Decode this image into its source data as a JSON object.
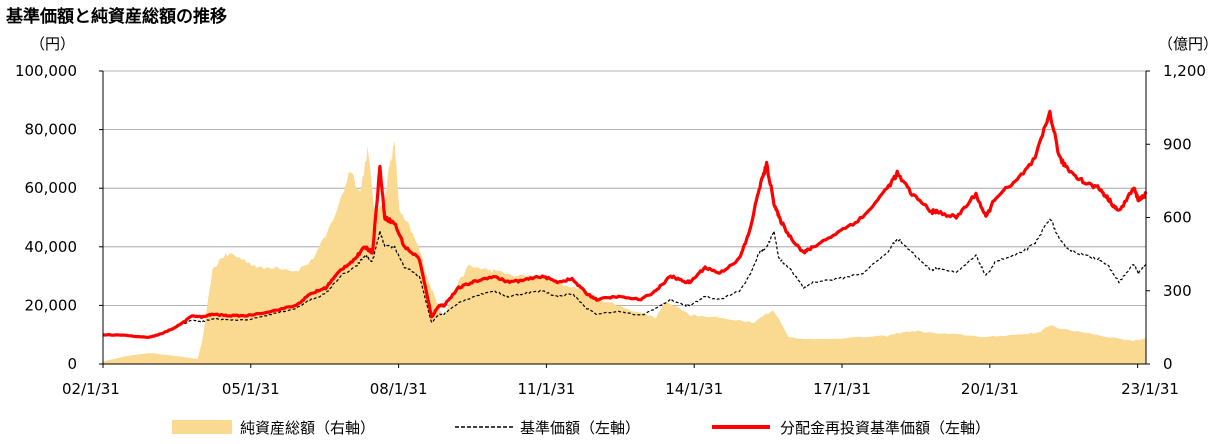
{
  "title": "基準価額と純資産総額の推移",
  "left_unit": "（円）",
  "right_unit": "（億円）",
  "chart_data": {
    "type": "line",
    "title": "基準価額と純資産総額の推移",
    "x_axis": {
      "tick_labels": [
        "02/1/31",
        "05/1/31",
        "08/1/31",
        "11/1/31",
        "14/1/31",
        "17/1/31",
        "20/1/31",
        "23/1/31"
      ],
      "range": [
        "2002-01-31",
        "2023-03-31"
      ]
    },
    "y_left": {
      "unit": "（円）",
      "range": [
        0,
        100000
      ],
      "ticks": [
        0,
        20000,
        40000,
        60000,
        80000,
        100000
      ],
      "tick_labels": [
        "0",
        "20,000",
        "40,000",
        "60,000",
        "80,000",
        "100,000"
      ]
    },
    "y_right": {
      "unit": "（億円）",
      "range": [
        0,
        1200
      ],
      "ticks": [
        0,
        300,
        600,
        900,
        1200
      ],
      "tick_labels": [
        "0",
        "300",
        "600",
        "900",
        "1,200"
      ]
    },
    "grid": "horizontal",
    "legend_position": "bottom",
    "series": [
      {
        "name": "純資産総額（右軸）",
        "type": "area",
        "axis": "right",
        "color": "#fad990",
        "x": [
          2002.08,
          2002.5,
          2003.0,
          2003.5,
          2004.0,
          2004.1,
          2004.3,
          2004.5,
          2004.7,
          2005.0,
          2005.3,
          2005.6,
          2006.0,
          2006.3,
          2006.6,
          2006.9,
          2007.1,
          2007.3,
          2007.45,
          2007.6,
          2007.8,
          2007.9,
          2008.0,
          2008.1,
          2008.3,
          2008.5,
          2008.7,
          2008.85,
          2009.0,
          2009.2,
          2009.5,
          2009.8,
          2010.0,
          2010.5,
          2011.0,
          2011.5,
          2011.8,
          2012.0,
          2012.5,
          2013.0,
          2013.3,
          2013.5,
          2014.0,
          2014.5,
          2015.0,
          2015.3,
          2015.5,
          2015.7,
          2016.0,
          2016.5,
          2017.0,
          2017.5,
          2018.0,
          2018.3,
          2018.6,
          2019.0,
          2019.5,
          2020.0,
          2020.3,
          2020.6,
          2020.9,
          2021.1,
          2021.3,
          2021.6,
          2022.0,
          2022.5,
          2023.0,
          2023.25
        ],
        "values": [
          10,
          30,
          45,
          35,
          20,
          100,
          380,
          440,
          450,
          420,
          390,
          400,
          380,
          420,
          520,
          670,
          800,
          700,
          880,
          620,
          680,
          820,
          900,
          620,
          560,
          470,
          330,
          260,
          190,
          300,
          400,
          390,
          380,
          360,
          360,
          320,
          310,
          280,
          240,
          210,
          190,
          260,
          200,
          190,
          180,
          170,
          200,
          220,
          110,
          100,
          105,
          110,
          115,
          130,
          135,
          125,
          120,
          110,
          115,
          120,
          125,
          130,
          160,
          140,
          130,
          110,
          95,
          105
        ]
      },
      {
        "name": "基準価額（左軸）",
        "type": "line",
        "axis": "left",
        "color": "#000000",
        "dash": "dashed",
        "x": [
          2002.08,
          2002.5,
          2003.0,
          2003.3,
          2003.6,
          2003.9,
          2004.1,
          2004.3,
          2004.6,
          2005.0,
          2005.5,
          2006.0,
          2006.3,
          2006.6,
          2006.9,
          2007.2,
          2007.4,
          2007.55,
          2007.7,
          2007.8,
          2008.0,
          2008.2,
          2008.5,
          2008.75,
          2008.9,
          2009.0,
          2009.3,
          2009.6,
          2010.0,
          2010.3,
          2010.6,
          2011.0,
          2011.3,
          2011.6,
          2011.9,
          2012.1,
          2012.5,
          2013.0,
          2013.3,
          2013.6,
          2013.9,
          2014.0,
          2014.3,
          2014.6,
          2015.0,
          2015.2,
          2015.4,
          2015.55,
          2015.7,
          2015.8,
          2016.0,
          2016.3,
          2016.5,
          2017.0,
          2017.5,
          2018.0,
          2018.2,
          2018.5,
          2018.9,
          2019.0,
          2019.4,
          2019.8,
          2020.0,
          2020.2,
          2020.6,
          2021.0,
          2021.3,
          2021.5,
          2021.7,
          2022.0,
          2022.3,
          2022.5,
          2022.7,
          2023.0,
          2023.1,
          2023.25
        ],
        "values": [
          10000,
          9800,
          9000,
          10500,
          13000,
          15000,
          14500,
          15500,
          15000,
          15000,
          17000,
          19000,
          22000,
          24000,
          30000,
          33000,
          37000,
          35000,
          45000,
          40000,
          40000,
          33000,
          30000,
          14000,
          17000,
          17000,
          21000,
          23000,
          25000,
          23000,
          24000,
          25000,
          23000,
          24000,
          19000,
          17000,
          18000,
          16500,
          19000,
          22000,
          20000,
          20000,
          23000,
          22000,
          25000,
          30000,
          38000,
          40000,
          45000,
          36000,
          33000,
          26000,
          28000,
          29000,
          31000,
          38000,
          43000,
          38000,
          32000,
          33000,
          31000,
          37000,
          30000,
          35000,
          37000,
          41000,
          50000,
          42000,
          39000,
          37000,
          36000,
          33000,
          28000,
          34000,
          31000,
          34000
        ]
      },
      {
        "name": "分配金再投資基準価額（左軸）",
        "type": "line",
        "axis": "left",
        "color": "#ff0000",
        "x": [
          2002.08,
          2002.5,
          2003.0,
          2003.3,
          2003.6,
          2003.9,
          2004.1,
          2004.3,
          2004.6,
          2005.0,
          2005.5,
          2006.0,
          2006.3,
          2006.6,
          2006.9,
          2007.2,
          2007.4,
          2007.55,
          2007.7,
          2007.8,
          2008.0,
          2008.2,
          2008.5,
          2008.75,
          2008.9,
          2009.0,
          2009.3,
          2009.6,
          2010.0,
          2010.3,
          2010.6,
          2011.0,
          2011.3,
          2011.6,
          2011.9,
          2012.1,
          2012.5,
          2013.0,
          2013.3,
          2013.6,
          2013.9,
          2014.0,
          2014.3,
          2014.6,
          2015.0,
          2015.2,
          2015.4,
          2015.55,
          2015.7,
          2015.8,
          2016.0,
          2016.3,
          2016.5,
          2017.0,
          2017.5,
          2018.0,
          2018.2,
          2018.5,
          2018.9,
          2019.0,
          2019.4,
          2019.8,
          2020.0,
          2020.2,
          2020.6,
          2021.0,
          2021.3,
          2021.5,
          2021.7,
          2022.0,
          2022.3,
          2022.5,
          2022.7,
          2023.0,
          2023.1,
          2023.25
        ],
        "values": [
          10000,
          9800,
          9000,
          10500,
          13000,
          16500,
          16000,
          17000,
          16500,
          16500,
          18000,
          20000,
          24000,
          26000,
          32000,
          36000,
          40000,
          38000,
          67000,
          50000,
          48000,
          40000,
          36000,
          16000,
          20000,
          20000,
          26000,
          28000,
          30000,
          28000,
          28500,
          30000,
          28000,
          29000,
          24000,
          22000,
          23000,
          22000,
          25000,
          30000,
          28000,
          28000,
          33000,
          31000,
          36000,
          45000,
          60000,
          68000,
          55000,
          50000,
          44000,
          38000,
          40000,
          45000,
          50000,
          60000,
          65000,
          58000,
          52000,
          52000,
          50000,
          58000,
          50000,
          57000,
          62000,
          70000,
          86000,
          70000,
          66000,
          62000,
          60000,
          56000,
          52000,
          60000,
          56000,
          58000
        ]
      }
    ]
  },
  "legend": [
    {
      "label": "純資産総額（右軸）",
      "swatch": "area"
    },
    {
      "label": "基準価額（左軸）",
      "swatch": "dashed-line"
    },
    {
      "label": "分配金再投資基準価額（左軸）",
      "swatch": "solid-line"
    }
  ]
}
